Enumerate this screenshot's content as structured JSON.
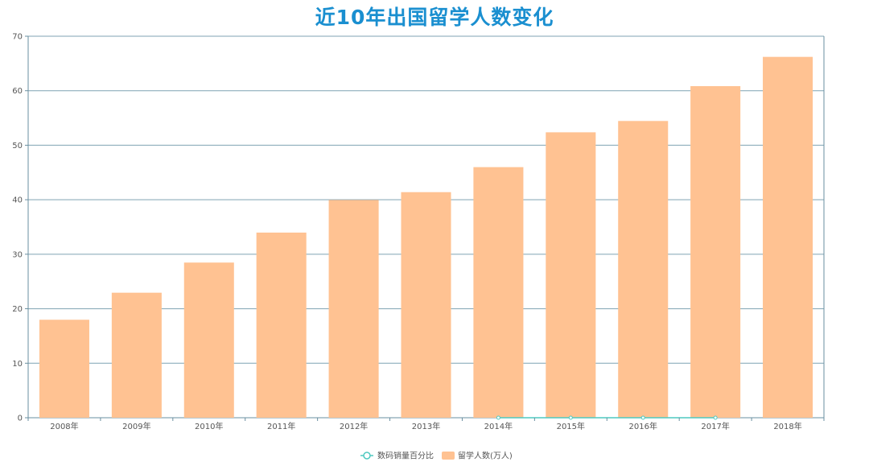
{
  "chart_data": {
    "type": "bar",
    "title": "近10年出国留学人数变化",
    "categories": [
      "2008年",
      "2009年",
      "2010年",
      "2011年",
      "2012年",
      "2013年",
      "2014年",
      "2015年",
      "2016年",
      "2017年",
      "2018年"
    ],
    "series": [
      {
        "name": "数码销量百分比",
        "type": "line",
        "values": [
          null,
          null,
          null,
          null,
          null,
          null,
          0,
          0,
          0,
          0,
          null
        ]
      },
      {
        "name": "留学人数(万人)",
        "type": "bar",
        "values": [
          17.98,
          22.94,
          28.47,
          33.97,
          39.96,
          41.39,
          45.98,
          52.37,
          54.45,
          60.84,
          66.21
        ]
      }
    ],
    "ylim": [
      0,
      70
    ],
    "yticks": [
      0,
      10,
      20,
      30,
      40,
      50,
      60,
      70
    ],
    "grid": true,
    "legend_position": "bottom-center"
  },
  "colors": {
    "title": "#1a8fd0",
    "bar": "#ffc292",
    "line": "#4fc9c0",
    "axis": "#6a8fa0",
    "grid": "#7fa3b3"
  }
}
